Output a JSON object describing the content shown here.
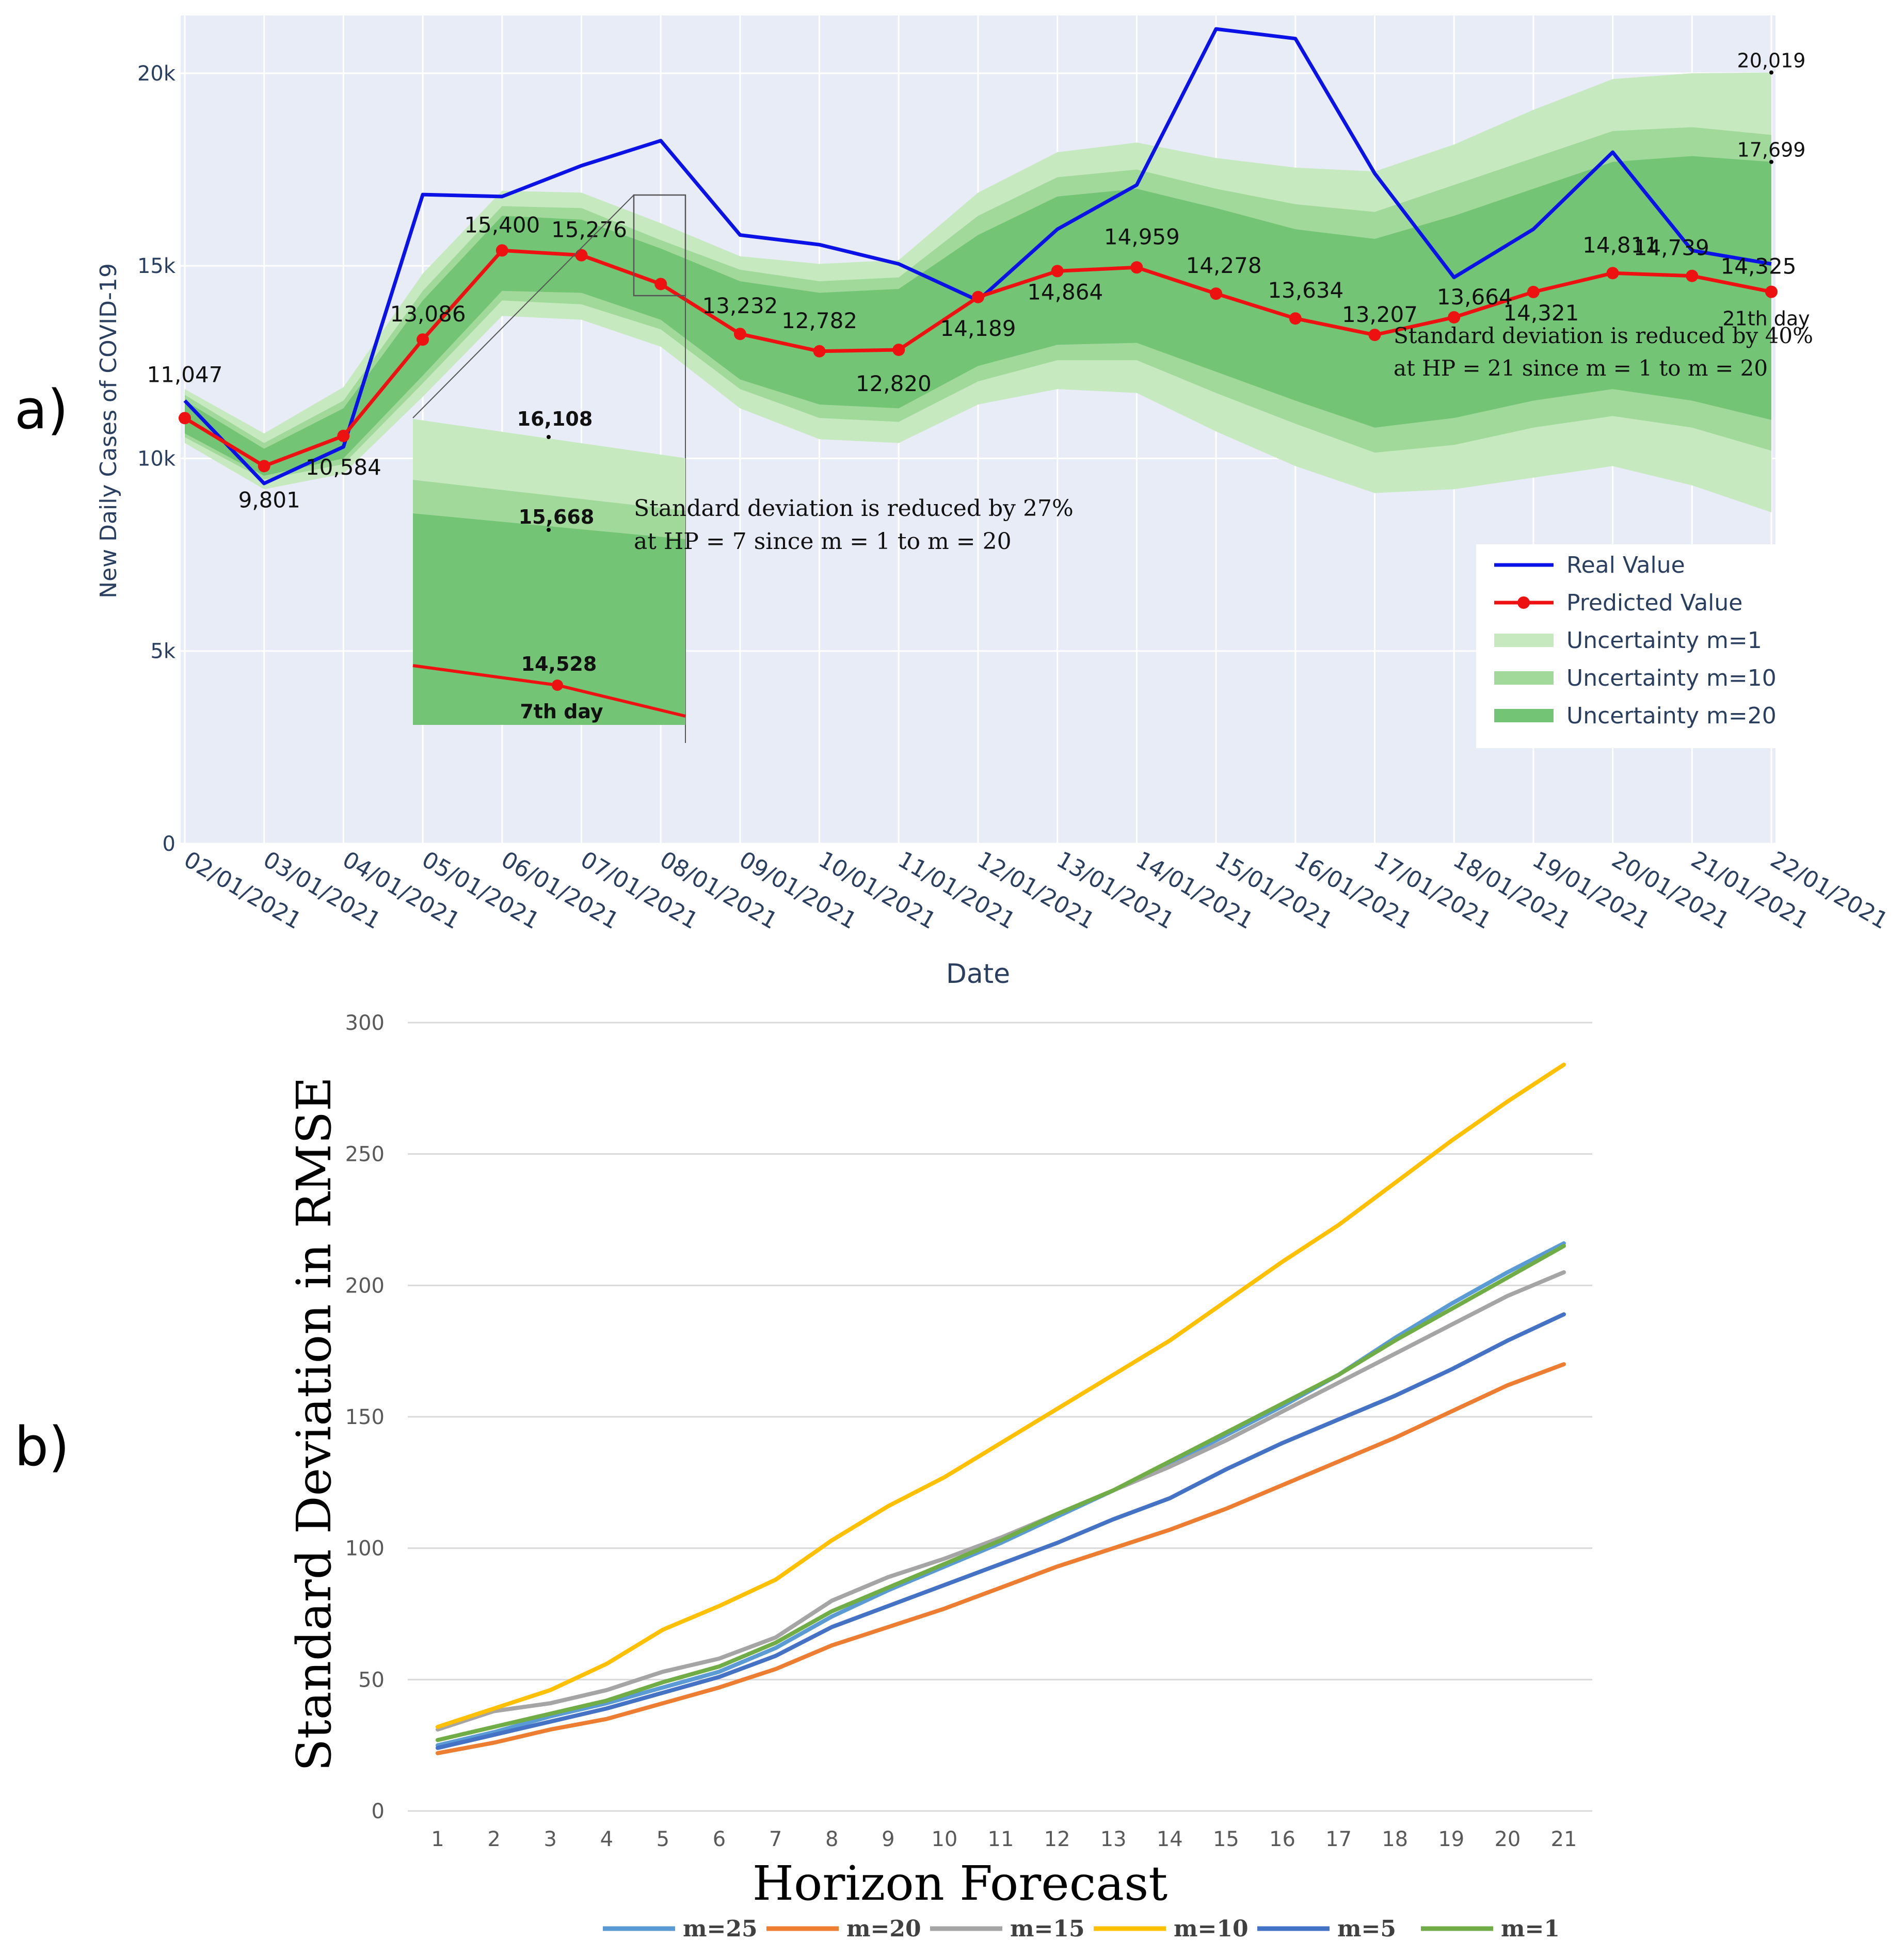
{
  "chart_data": [
    {
      "type": "line",
      "panel_label": "a)",
      "xlabel": "Date",
      "ylabel": "New Daily Cases of COVID-19",
      "ylim": [
        0,
        21500
      ],
      "yticks": [
        {
          "value": 0,
          "label": "0"
        },
        {
          "value": 5000,
          "label": "5k"
        },
        {
          "value": 10000,
          "label": "10k"
        },
        {
          "value": 15000,
          "label": "15k"
        },
        {
          "value": 20000,
          "label": "20k"
        }
      ],
      "grid": true,
      "legend_position": "bottom-right",
      "categories": [
        "02/01/2021",
        "03/01/2021",
        "04/01/2021",
        "05/01/2021",
        "06/01/2021",
        "07/01/2021",
        "08/01/2021",
        "09/01/2021",
        "10/01/2021",
        "11/01/2021",
        "12/01/2021",
        "13/01/2021",
        "14/01/2021",
        "15/01/2021",
        "16/01/2021",
        "17/01/2021",
        "18/01/2021",
        "19/01/2021",
        "20/01/2021",
        "21/01/2021",
        "22/01/2021"
      ],
      "series": [
        {
          "name": "Real Value",
          "color": "#0a12e6",
          "values": [
            11500,
            9350,
            10300,
            16850,
            16800,
            17600,
            18250,
            15800,
            15550,
            15050,
            14100,
            15950,
            17100,
            21150,
            20900,
            17400,
            14700,
            15950,
            17950,
            15400,
            15050
          ]
        },
        {
          "name": "Predicted Value",
          "color": "#ee1111",
          "markers": true,
          "values": [
            11047,
            9801,
            10584,
            13086,
            15400,
            15276,
            14528,
            13232,
            12782,
            12820,
            14189,
            14864,
            14959,
            14278,
            13634,
            13207,
            13664,
            14321,
            14811,
            14739,
            14325
          ]
        }
      ],
      "bands": [
        {
          "name": "Uncertainty m=1",
          "color": "#c7e9c0",
          "upper": [
            11800,
            10650,
            11850,
            14800,
            16950,
            16900,
            16108,
            15250,
            15050,
            15150,
            16900,
            17950,
            18200,
            17800,
            17550,
            17450,
            18150,
            19050,
            19850,
            20000,
            20019
          ],
          "lower": [
            10400,
            9200,
            9600,
            11600,
            13700,
            13600,
            12900,
            11300,
            10500,
            10400,
            11400,
            11800,
            11700,
            10700,
            9800,
            9100,
            9200,
            9500,
            9800,
            9300,
            8600
          ]
        },
        {
          "name": "Uncertainty m=10",
          "color": "#a1d99b",
          "upper": [
            11650,
            10400,
            11500,
            14350,
            16550,
            16500,
            15668,
            14900,
            14600,
            14700,
            16300,
            17300,
            17500,
            17000,
            16600,
            16400,
            17100,
            17800,
            18500,
            18600,
            18400
          ],
          "lower": [
            10550,
            9450,
            9850,
            11950,
            14100,
            14000,
            13350,
            11800,
            11050,
            10950,
            12000,
            12550,
            12550,
            11700,
            10900,
            10150,
            10350,
            10800,
            11100,
            10800,
            10200
          ]
        },
        {
          "name": "Uncertainty m=20",
          "color": "#74c476",
          "upper": [
            11500,
            10250,
            11300,
            14100,
            16300,
            16200,
            15450,
            14600,
            14300,
            14400,
            15800,
            16800,
            17000,
            16500,
            15950,
            15700,
            16300,
            17000,
            17700,
            17850,
            17699
          ],
          "lower": [
            10650,
            9550,
            10000,
            12150,
            14350,
            14300,
            13600,
            12050,
            11400,
            11300,
            12400,
            12950,
            13000,
            12250,
            11500,
            10800,
            11050,
            11500,
            11800,
            11500,
            11000
          ]
        }
      ],
      "point_labels": [
        "11,047",
        "9,801",
        "10,584",
        "13,086",
        "15,400",
        "15,276",
        "",
        "13,232",
        "12,782",
        "12,820",
        "14,189",
        "14,864",
        "14,959",
        "14,278",
        "13,634",
        "13,207",
        "13,664",
        "14,321",
        "14,811",
        "14,739",
        "14,325"
      ],
      "annotations": [
        {
          "id": "band20",
          "text": "20,019"
        },
        {
          "id": "band17",
          "text": "17,699"
        },
        {
          "id": "day21",
          "text": "21th day"
        },
        {
          "id": "sd40a",
          "text": "Standard deviation is reduced by 40%"
        },
        {
          "id": "sd40b",
          "text": "at HP = 21 since  m = 1 to m = 20"
        }
      ],
      "inset": {
        "labels": {
          "top": "16,108",
          "mid": "15,668",
          "pred": "14,528",
          "day": "7th day"
        },
        "note_line1": "Standard deviation is reduced by 27%",
        "note_line2": "at HP = 7 since  m = 1 to  m  = 20"
      }
    },
    {
      "type": "line",
      "panel_label": "b)",
      "xlabel": "Horizon Forecast",
      "ylabel": "Standard Deviation in RMSE",
      "ylim": [
        0,
        300
      ],
      "yticks": [
        0,
        50,
        100,
        150,
        200,
        250,
        300
      ],
      "grid": true,
      "legend_position": "bottom",
      "categories": [
        "1",
        "2",
        "3",
        "4",
        "5",
        "6",
        "7",
        "8",
        "9",
        "10",
        "11",
        "12",
        "13",
        "14",
        "15",
        "16",
        "17",
        "18",
        "19",
        "20",
        "21"
      ],
      "series": [
        {
          "name": "m=25",
          "color": "#5b9bd5",
          "values": [
            25,
            30,
            36,
            41,
            47,
            53,
            62,
            74,
            84,
            93,
            102,
            112,
            122,
            132,
            143,
            154,
            166,
            180,
            193,
            205,
            216
          ]
        },
        {
          "name": "m=20",
          "color": "#ed7d31",
          "values": [
            22,
            26,
            31,
            35,
            41,
            47,
            54,
            63,
            70,
            77,
            85,
            93,
            100,
            107,
            115,
            124,
            133,
            142,
            152,
            162,
            170
          ]
        },
        {
          "name": "m=15",
          "color": "#a5a5a5",
          "values": [
            31,
            38,
            41,
            46,
            53,
            58,
            66,
            80,
            89,
            96,
            104,
            113,
            122,
            131,
            141,
            152,
            163,
            174,
            185,
            196,
            205
          ]
        },
        {
          "name": "m=10",
          "color": "#ffc000",
          "values": [
            32,
            39,
            46,
            56,
            69,
            78,
            88,
            103,
            116,
            127,
            140,
            153,
            166,
            179,
            194,
            209,
            223,
            239,
            255,
            270,
            284
          ]
        },
        {
          "name": "m=5",
          "color": "#4472c4",
          "values": [
            24,
            29,
            34,
            39,
            45,
            51,
            59,
            70,
            78,
            86,
            94,
            102,
            111,
            119,
            130,
            140,
            149,
            158,
            168,
            179,
            189
          ]
        },
        {
          "name": "m=1",
          "color": "#70ad47",
          "values": [
            27,
            32,
            37,
            42,
            49,
            55,
            64,
            76,
            85,
            94,
            103,
            113,
            122,
            133,
            144,
            155,
            166,
            179,
            191,
            203,
            215
          ]
        }
      ]
    }
  ]
}
